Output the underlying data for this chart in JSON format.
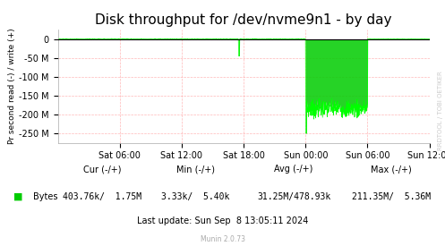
{
  "title": "Disk throughput for /dev/nvme9n1 - by day",
  "ylabel": "Pr second read (-) / write (+)",
  "background_color": "#FFFFFF",
  "plot_bg_color": "#FFFFFF",
  "grid_color": "#FF9999",
  "line_color": "#00FF00",
  "fill_color": "#00CC00",
  "ylim": [
    -275000000,
    25000000
  ],
  "yticks": [
    0,
    -50000000,
    -100000000,
    -150000000,
    -200000000,
    -250000000
  ],
  "xtick_positions": [
    6,
    12,
    18,
    24,
    30,
    36
  ],
  "xlabel_ticks": [
    "Sat 06:00",
    "Sat 12:00",
    "Sat 18:00",
    "Sun 00:00",
    "Sun 06:00",
    "Sun 12:00"
  ],
  "xlim": [
    0,
    36
  ],
  "legend_label": "Bytes",
  "cur_label": "Cur (-/+)",
  "min_label": "Min (-/+)",
  "avg_label": "Avg (-/+)",
  "max_label": "Max (-/+)",
  "cur_val": "403.76k/  1.75M",
  "min_val": "3.33k/  5.40k",
  "avg_val": "31.25M/478.93k",
  "max_val": "211.35M/  5.36M",
  "last_update": "Last update: Sun Sep  8 13:05:11 2024",
  "munin_version": "Munin 2.0.73",
  "rrdtool_label": "RRDTOOL / TOBI OETIKER",
  "title_fontsize": 11,
  "axis_fontsize": 7,
  "legend_fontsize": 7
}
